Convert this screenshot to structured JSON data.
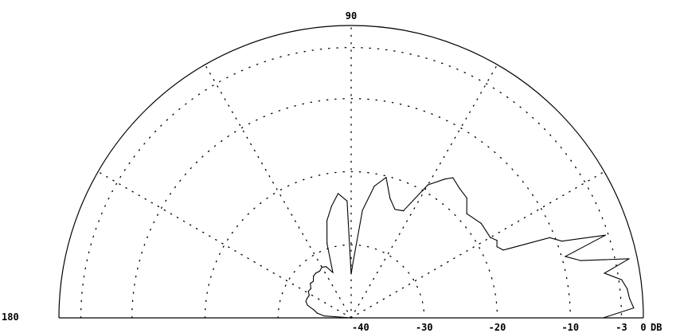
{
  "chart_data": {
    "type": "line",
    "subtype": "polar-radiation-pattern-half",
    "top_angle_label": "90",
    "left_angle_label": "180",
    "db_ticks": [
      {
        "label": "-40",
        "value": -40
      },
      {
        "label": "-30",
        "value": -30
      },
      {
        "label": "-20",
        "value": -20
      },
      {
        "label": "-10",
        "value": -10
      },
      {
        "label": "-3",
        "value": -3
      },
      {
        "label": "0",
        "value": 0
      }
    ],
    "unit_label": "DB",
    "angle_spokes_deg": [
      30,
      60,
      90,
      120,
      150
    ],
    "range_db": [
      -40,
      0
    ],
    "grid": true,
    "colors": {
      "line": "#000000",
      "grid": "#000000",
      "background": "#ffffff"
    },
    "series": [
      {
        "points": [
          [
            0,
            -5.5
          ],
          [
            2,
            -1.3
          ],
          [
            4,
            -1.8
          ],
          [
            6,
            -2.0
          ],
          [
            8,
            -2.6
          ],
          [
            10,
            -4.8
          ],
          [
            12,
            -1.1
          ],
          [
            14,
            -7.6
          ],
          [
            16,
            -9.5
          ],
          [
            18,
            -3.4
          ],
          [
            20,
            -9.3
          ],
          [
            22,
            -10.7
          ],
          [
            24,
            -17.2
          ],
          [
            26,
            -17.8
          ],
          [
            28,
            -17.4
          ],
          [
            30,
            -18.0
          ],
          [
            36,
            -18.0
          ],
          [
            42,
            -18.7
          ],
          [
            46,
            -17.2
          ],
          [
            50,
            -16.9
          ],
          [
            54,
            -16.3
          ],
          [
            56,
            -17.1
          ],
          [
            60,
            -19.0
          ],
          [
            64,
            -23.7
          ],
          [
            68,
            -24.0
          ],
          [
            72,
            -22.8
          ],
          [
            76,
            -20.2
          ],
          [
            80,
            -21.7
          ],
          [
            84,
            -25.2
          ],
          [
            88,
            -32.4
          ],
          [
            90,
            -34.0
          ],
          [
            92,
            -24.0
          ],
          [
            96,
            -22.9
          ],
          [
            100,
            -24.5
          ],
          [
            104,
            -26.3
          ],
          [
            108,
            -29.3
          ],
          [
            112,
            -33.3
          ],
          [
            116,
            -32.2
          ],
          [
            120,
            -32.0
          ],
          [
            124,
            -32.3
          ],
          [
            128,
            -32.2
          ],
          [
            132,
            -32.3
          ],
          [
            136,
            -32.8
          ],
          [
            140,
            -32.7
          ],
          [
            144,
            -33.2
          ],
          [
            148,
            -33.1
          ],
          [
            152,
            -33.5
          ],
          [
            156,
            -33.4
          ],
          [
            160,
            -33.4
          ],
          [
            164,
            -33.8
          ],
          [
            168,
            -34.8
          ],
          [
            172,
            -35.3
          ],
          [
            176,
            -36.3
          ],
          [
            180,
            -40.0
          ]
        ]
      }
    ]
  }
}
